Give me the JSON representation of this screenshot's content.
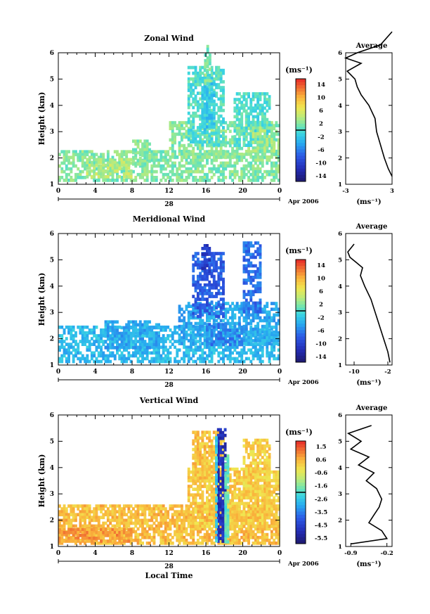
{
  "global": {
    "xlabel": "Local Time",
    "date_label": "Apr 2006",
    "day_label": "28",
    "x_ticks": [
      "0",
      "4",
      "8",
      "12",
      "16",
      "20",
      "0"
    ]
  },
  "chart_data": [
    {
      "type": "heatmap",
      "title": "Zonal Wind",
      "ylabel": "Height (km)",
      "xlabel": "Local Time",
      "y_ticks": [
        "1",
        "2",
        "3",
        "4",
        "5",
        "6"
      ],
      "ylim": [
        1,
        6
      ],
      "xlim": [
        0,
        24
      ],
      "colorbar": {
        "unit": "(ms⁻¹)",
        "ticks": [
          "14",
          "10",
          "6",
          "2",
          "-2",
          "-6",
          "-10",
          "-14"
        ],
        "range": [
          -16,
          16
        ]
      },
      "regions": [
        {
          "x": [
            0,
            24
          ],
          "y": [
            1.1,
            2.3
          ],
          "v": 2
        },
        {
          "x": [
            3,
            8
          ],
          "y": [
            1.3,
            2.0
          ],
          "v": 4
        },
        {
          "x": [
            8,
            10
          ],
          "y": [
            1.8,
            2.7
          ],
          "v": 2
        },
        {
          "x": [
            12,
            24
          ],
          "y": [
            2.0,
            3.4
          ],
          "v": 2
        },
        {
          "x": [
            14,
            18
          ],
          "y": [
            2.5,
            5.5
          ],
          "v": 0
        },
        {
          "x": [
            15.5,
            17
          ],
          "y": [
            3.0,
            5.2
          ],
          "v": -2
        },
        {
          "x": [
            15.8,
            16.5
          ],
          "y": [
            4.8,
            6.3
          ],
          "v": 2
        },
        {
          "x": [
            19,
            23
          ],
          "y": [
            2.5,
            4.5
          ],
          "v": 0
        },
        {
          "x": [
            21,
            23.5
          ],
          "y": [
            2.3,
            3.2
          ],
          "v": 3
        }
      ],
      "average": {
        "title": "Average",
        "xlabel": "(ms⁻¹)",
        "x_ticks": [
          "-3",
          "3"
        ],
        "xlim": [
          -3,
          3
        ],
        "y_ticks": [
          "1",
          "2",
          "3",
          "4",
          "5",
          "6"
        ],
        "height": [
          1.3,
          1.6,
          2.0,
          2.5,
          3.0,
          3.5,
          4.0,
          4.4,
          4.7,
          5.0,
          5.3,
          5.6,
          5.8,
          6.0,
          6.3,
          6.8
        ],
        "value": [
          3.0,
          2.5,
          2.0,
          1.5,
          1.0,
          0.8,
          0.0,
          -1.0,
          -1.5,
          -1.8,
          -2.8,
          -1.0,
          -3.0,
          -1.5,
          1.5,
          3.0
        ]
      }
    },
    {
      "type": "heatmap",
      "title": "Meridional Wind",
      "ylabel": "Height (km)",
      "xlabel": "Local Time",
      "y_ticks": [
        "1",
        "2",
        "3",
        "4",
        "5",
        "6"
      ],
      "ylim": [
        1,
        6
      ],
      "xlim": [
        0,
        24
      ],
      "colorbar": {
        "unit": "(ms⁻¹)",
        "ticks": [
          "14",
          "10",
          "6",
          "2",
          "-2",
          "-6",
          "-10",
          "-14"
        ],
        "range": [
          -16,
          16
        ]
      },
      "regions": [
        {
          "x": [
            0,
            24
          ],
          "y": [
            1.1,
            2.5
          ],
          "v": -3
        },
        {
          "x": [
            5,
            11
          ],
          "y": [
            1.6,
            2.7
          ],
          "v": -4
        },
        {
          "x": [
            13,
            24
          ],
          "y": [
            1.8,
            3.4
          ],
          "v": -4
        },
        {
          "x": [
            14.5,
            18
          ],
          "y": [
            2.8,
            5.3
          ],
          "v": -8
        },
        {
          "x": [
            15.5,
            16.5
          ],
          "y": [
            4.5,
            5.6
          ],
          "v": -11
        },
        {
          "x": [
            20,
            22
          ],
          "y": [
            3.0,
            5.7
          ],
          "v": -7
        },
        {
          "x": [
            16,
            20
          ],
          "y": [
            1.8,
            2.6
          ],
          "v": -6
        }
      ],
      "average": {
        "title": "Average",
        "xlabel": "(ms⁻¹)",
        "x_ticks": [
          "-10",
          "-2"
        ],
        "xlim": [
          -12,
          -1
        ],
        "y_ticks": [
          "1",
          "2",
          "3",
          "4",
          "5",
          "6"
        ],
        "height": [
          1.1,
          1.5,
          2.0,
          2.5,
          3.0,
          3.5,
          4.0,
          4.4,
          4.7,
          4.9,
          5.1,
          5.3,
          5.6
        ],
        "value": [
          -1.5,
          -2.0,
          -3.0,
          -4.0,
          -5.0,
          -6.0,
          -7.5,
          -8.5,
          -8.0,
          -9.5,
          -11.0,
          -11.5,
          -10.0
        ]
      }
    },
    {
      "type": "heatmap",
      "title": "Vertical Wind",
      "ylabel": "Height (km)",
      "xlabel": "Local Time",
      "y_ticks": [
        "1",
        "2",
        "3",
        "4",
        "5",
        "6"
      ],
      "ylim": [
        1,
        6
      ],
      "xlim": [
        0,
        24
      ],
      "colorbar": {
        "unit": "(ms⁻¹)",
        "ticks": [
          "1.5",
          "0.6",
          "-0.6",
          "-1.6",
          "-2.6",
          "-3.5",
          "-4.5",
          "-5.5"
        ],
        "range": [
          -6,
          2
        ]
      },
      "regions": [
        {
          "x": [
            0,
            24
          ],
          "y": [
            1.1,
            2.6
          ],
          "v": 0.4
        },
        {
          "x": [
            0,
            8
          ],
          "y": [
            1.2,
            1.7
          ],
          "v": 0.8
        },
        {
          "x": [
            14,
            24
          ],
          "y": [
            1.8,
            4.0
          ],
          "v": 0.2
        },
        {
          "x": [
            14.5,
            18
          ],
          "y": [
            3.5,
            5.4
          ],
          "v": 0.3
        },
        {
          "x": [
            20,
            23
          ],
          "y": [
            3.0,
            5.1
          ],
          "v": 0.1
        },
        {
          "x": [
            17.2,
            18.0
          ],
          "y": [
            1.2,
            5.5
          ],
          "v": -5.0
        },
        {
          "x": [
            17.0,
            17.2
          ],
          "y": [
            1.2,
            5.3
          ],
          "v": -2.5
        },
        {
          "x": [
            18.0,
            18.3
          ],
          "y": [
            1.2,
            4.5
          ],
          "v": -1.8
        }
      ],
      "average": {
        "title": "Average",
        "xlabel": "(ms⁻¹)",
        "x_ticks": [
          "-0.9",
          "-0.2"
        ],
        "xlim": [
          -1.0,
          -0.1
        ],
        "y_ticks": [
          "1",
          "2",
          "3",
          "4",
          "5",
          "6"
        ],
        "height": [
          1.1,
          1.3,
          1.6,
          1.9,
          2.2,
          2.5,
          2.8,
          3.2,
          3.5,
          3.8,
          4.1,
          4.4,
          4.7,
          5.0,
          5.3,
          5.6
        ],
        "value": [
          -0.9,
          -0.2,
          -0.3,
          -0.55,
          -0.45,
          -0.35,
          -0.3,
          -0.4,
          -0.6,
          -0.45,
          -0.75,
          -0.55,
          -0.9,
          -0.7,
          -0.95,
          -0.5
        ]
      }
    }
  ]
}
